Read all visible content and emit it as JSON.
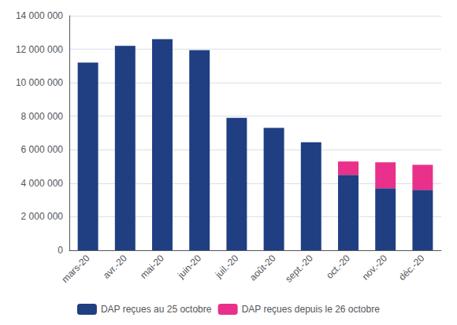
{
  "chart_data": {
    "type": "bar",
    "stacked": true,
    "categories": [
      "mars-20",
      "avr.-20",
      "mai-20",
      "juin-20",
      "juil.-20",
      "août-20",
      "sept.-20",
      "oct.-20",
      "nov.-20",
      "déc.-20"
    ],
    "series": [
      {
        "name": "DAP reçues au 25 octobre",
        "color": "#1F3F82",
        "values": [
          11200000,
          12200000,
          12600000,
          11950000,
          7900000,
          7300000,
          6450000,
          4500000,
          3700000,
          3600000
        ]
      },
      {
        "name": "DAP reçues depuis le 26 octobre",
        "color": "#E9308A",
        "values": [
          0,
          0,
          0,
          0,
          0,
          0,
          0,
          800000,
          1550000,
          1500000
        ]
      }
    ],
    "ylim": [
      0,
      14000000
    ],
    "yticks": [
      0,
      {
        "value": 2000000,
        "label": "2 000 000"
      },
      {
        "value": 4000000,
        "label": "4 000 000"
      },
      {
        "value": 6000000,
        "label": "6 000 000"
      },
      {
        "value": 8000000,
        "label": "8 000 000"
      },
      {
        "value": 10000000,
        "label": "10 000 000"
      },
      {
        "value": 12000000,
        "label": "12 000 000"
      },
      {
        "value": 14000000,
        "label": "14 000 000"
      }
    ],
    "grid": true,
    "legend": "bottom"
  }
}
